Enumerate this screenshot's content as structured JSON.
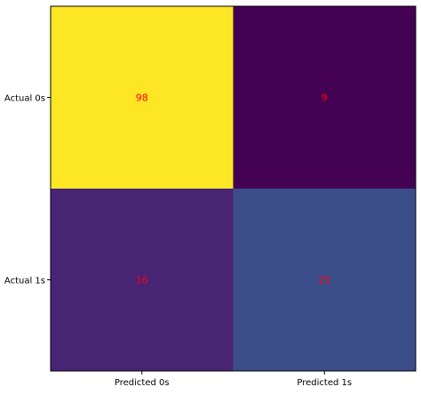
{
  "chart_data": {
    "type": "heatmap",
    "title": "",
    "xlabel": "",
    "ylabel": "",
    "x_tick_labels": [
      "Predicted 0s",
      "Predicted 1s"
    ],
    "y_tick_labels": [
      "Actual 0s",
      "Actual 1s"
    ],
    "values": [
      [
        98,
        9
      ],
      [
        16,
        25
      ]
    ],
    "cell_colors": [
      [
        "#fde725",
        "#440154"
      ],
      [
        "#482475",
        "#3b4e8a"
      ]
    ],
    "annotation_color": "#ff0000",
    "colormap": "viridis"
  }
}
